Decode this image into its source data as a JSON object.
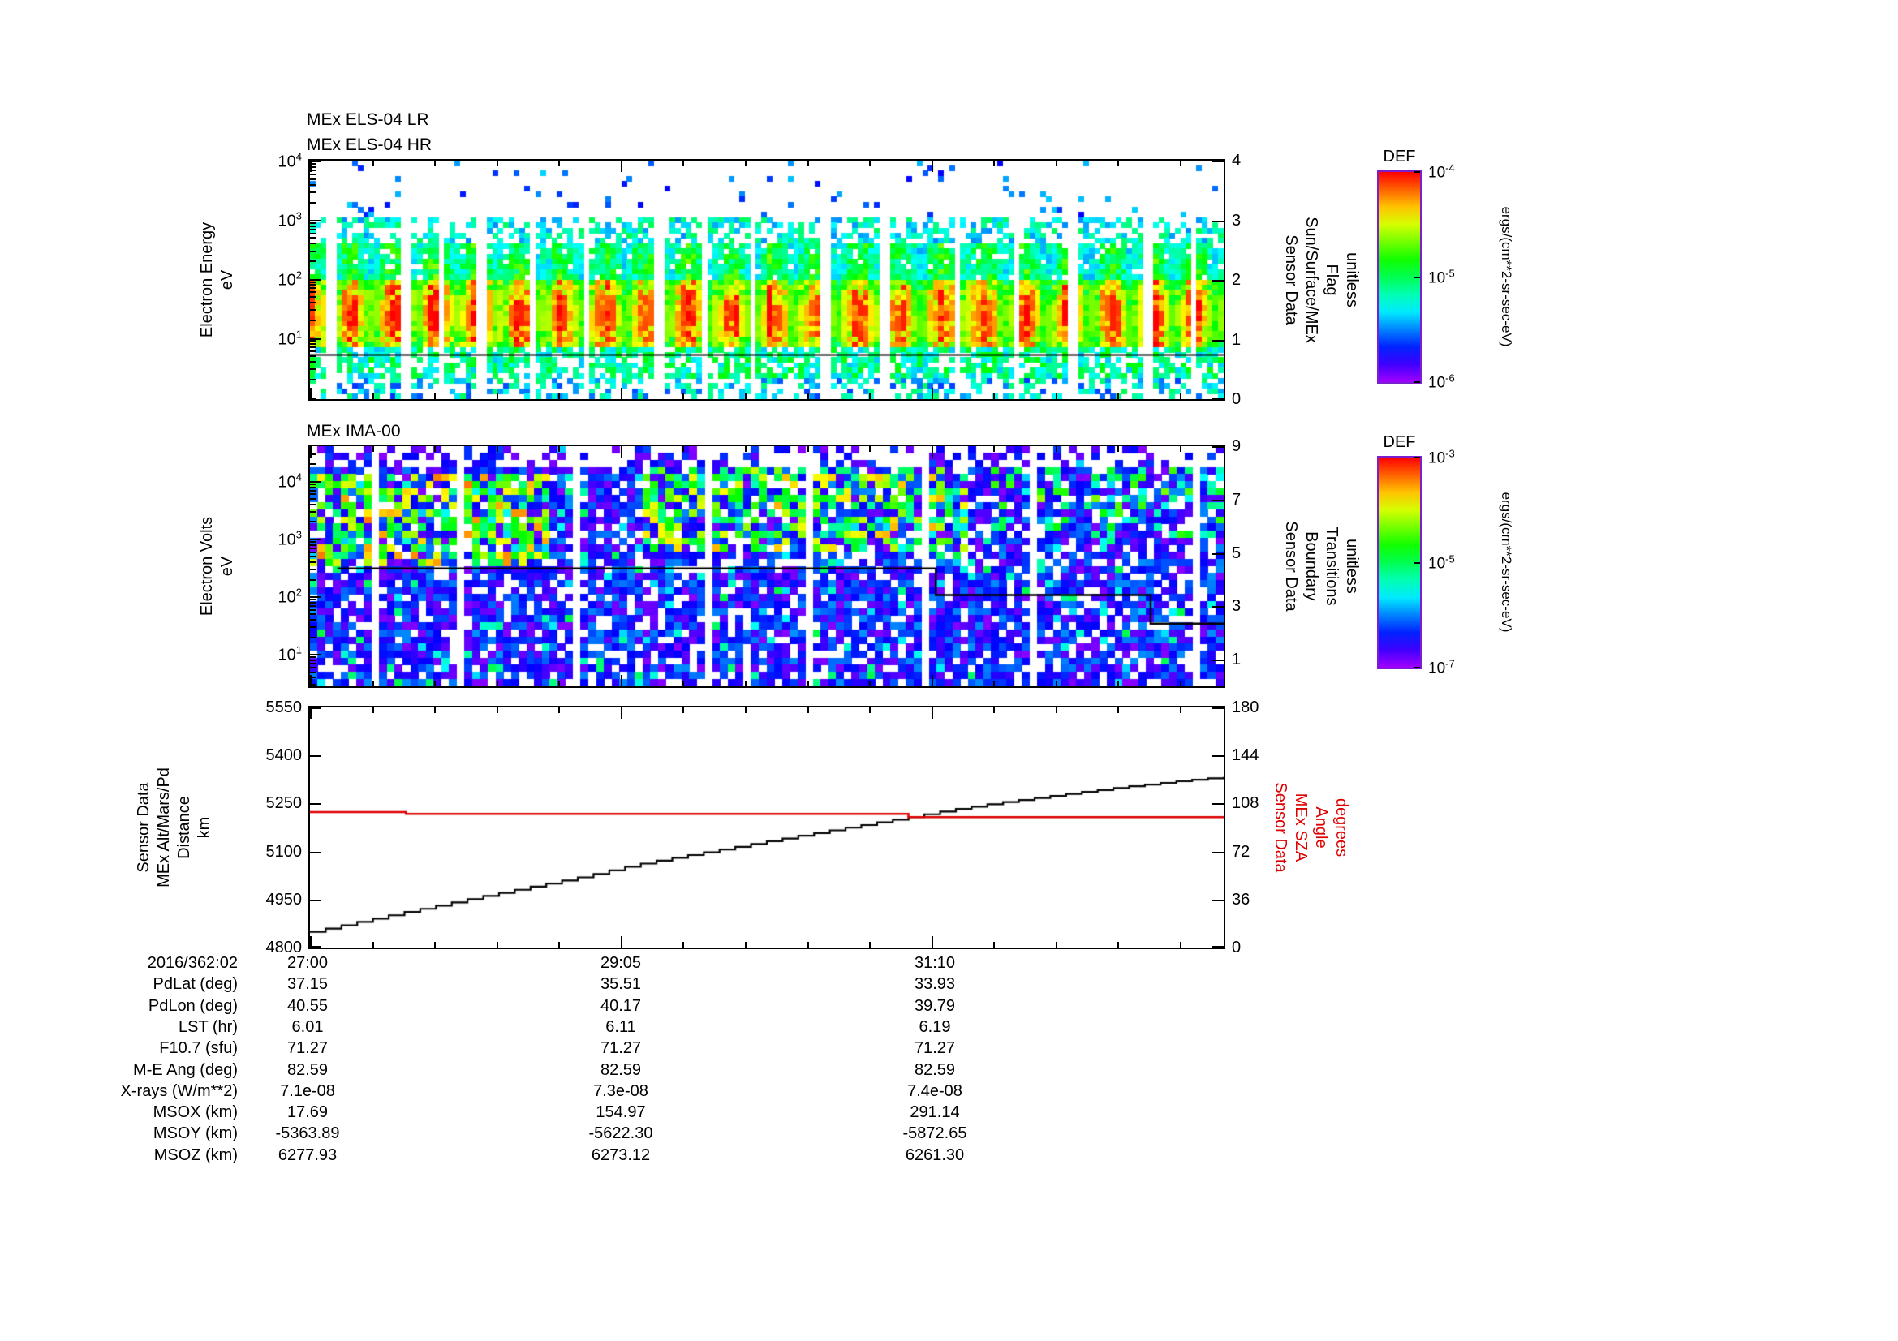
{
  "figure": {
    "background": "#ffffff",
    "accent_red": "#dd0000",
    "colorbar_border": "#7a1fd0"
  },
  "panels": {
    "els": {
      "title_lr": "MEx ELS-04 LR",
      "title_hr": "MEx ELS-04 HR",
      "left_label": [
        "Electron Energy",
        "eV"
      ],
      "right_label": [
        "Sensor Data",
        "Sun/Surface/MEx",
        "Flag",
        "unitless"
      ],
      "log_axis": {
        "top": 4.0,
        "bottom": -0.05
      },
      "left_ticks": [
        {
          "m": "10",
          "s": "4",
          "frac": 0.0
        },
        {
          "m": "10",
          "s": "3",
          "frac": 0.248
        },
        {
          "m": "10",
          "s": "2",
          "frac": 0.497
        },
        {
          "m": "10",
          "s": "1",
          "frac": 0.745
        }
      ],
      "right_ticks": [
        {
          "m": "4",
          "frac": 0.0
        },
        {
          "m": "3",
          "frac": 0.25
        },
        {
          "m": "2",
          "frac": 0.5
        },
        {
          "m": "1",
          "frac": 0.75
        },
        {
          "m": "0",
          "frac": 1.0
        }
      ]
    },
    "ima": {
      "title": "MEx IMA-00",
      "left_label": [
        "Electron Volts",
        "eV"
      ],
      "right_label": [
        "Sensor Data",
        "Boundary",
        "Transitions",
        "unitless"
      ],
      "log_axis": {
        "top": 4.6,
        "bottom": 0.44
      },
      "left_ticks": [
        {
          "m": "10",
          "s": "4",
          "frac": 0.144
        },
        {
          "m": "10",
          "s": "3",
          "frac": 0.385
        },
        {
          "m": "10",
          "s": "2",
          "frac": 0.625
        },
        {
          "m": "10",
          "s": "1",
          "frac": 0.865
        }
      ],
      "right_ticks": [
        {
          "m": "9",
          "frac": 0.0
        },
        {
          "m": "7",
          "frac": 0.2222
        },
        {
          "m": "5",
          "frac": 0.4444
        },
        {
          "m": "3",
          "frac": 0.6667
        },
        {
          "m": "1",
          "frac": 0.8889
        }
      ]
    },
    "aux": {
      "left_label": [
        "Sensor Data",
        "MEx Alt/Mars/Pd",
        "Distance",
        "km"
      ],
      "right_label": [
        "Sensor Data",
        "MEx SZA",
        "Angle",
        "degrees"
      ],
      "left_ticks": [
        {
          "m": "5550",
          "frac": 0.0
        },
        {
          "m": "5400",
          "frac": 0.2
        },
        {
          "m": "5250",
          "frac": 0.4
        },
        {
          "m": "5100",
          "frac": 0.6
        },
        {
          "m": "4950",
          "frac": 0.8
        },
        {
          "m": "4800",
          "frac": 1.0
        }
      ],
      "right_ticks": [
        {
          "m": "180",
          "frac": 0.0
        },
        {
          "m": "144",
          "frac": 0.2
        },
        {
          "m": "108",
          "frac": 0.4
        },
        {
          "m": "72",
          "frac": 0.6
        },
        {
          "m": "36",
          "frac": 0.8
        },
        {
          "m": "0",
          "frac": 1.0
        }
      ]
    },
    "x_axis": {
      "major_fracs": [
        0.0,
        0.34,
        0.68
      ],
      "minor_step": 0.068
    }
  },
  "colorbars": [
    {
      "title": "DEF",
      "unit": "ergs/(cm**2-sr-sec-eV)",
      "ticks": [
        {
          "m": "10",
          "s": "-4",
          "frac": 0.0
        },
        {
          "m": "10",
          "s": "-5",
          "frac": 0.5
        },
        {
          "m": "10",
          "s": "-6",
          "frac": 1.0
        }
      ]
    },
    {
      "title": "DEF",
      "unit": "ergs/(cm**2-sr-sec-eV)",
      "ticks": [
        {
          "m": "10",
          "s": "-3",
          "frac": 0.0
        },
        {
          "m": "10",
          "s": "-5",
          "frac": 0.5
        },
        {
          "m": "10",
          "s": "-7",
          "frac": 1.0
        }
      ]
    }
  ],
  "table": {
    "rows": [
      {
        "label": "2016/362:02",
        "values": [
          "27:00",
          "29:05",
          "31:10"
        ]
      },
      {
        "label": "PdLat (deg)",
        "values": [
          "37.15",
          "35.51",
          "33.93"
        ]
      },
      {
        "label": "PdLon (deg)",
        "values": [
          "40.55",
          "40.17",
          "39.79"
        ]
      },
      {
        "label": "LST (hr)",
        "values": [
          "6.01",
          "6.11",
          "6.19"
        ]
      },
      {
        "label": "F10.7 (sfu)",
        "values": [
          "71.27",
          "71.27",
          "71.27"
        ]
      },
      {
        "label": "M-E Ang (deg)",
        "values": [
          "82.59",
          "82.59",
          "82.59"
        ]
      },
      {
        "label": "X-rays (W/m**2)",
        "values": [
          "7.1e-08",
          "7.3e-08",
          "7.4e-08"
        ]
      },
      {
        "label": "MSOX (km)",
        "values": [
          "17.69",
          "154.97",
          "291.14"
        ]
      },
      {
        "label": "MSOY (km)",
        "values": [
          "-5363.89",
          "-5622.30",
          "-5872.65"
        ]
      },
      {
        "label": "MSOZ (km)",
        "values": [
          "6277.93",
          "6273.12",
          "6261.30"
        ]
      }
    ]
  },
  "chart_data": [
    {
      "type": "heatmap",
      "title": "MEx ELS-04 LR / MEx ELS-04 HR",
      "ylabel": "Electron Energy eV",
      "y_scale": "log",
      "ylim": [
        1,
        10000
      ],
      "x_tick_labels": [
        "27:00",
        "29:05",
        "31:10"
      ],
      "right_axis": {
        "label": "Sensor Data Sun/Surface/MEx Flag unitless",
        "ylim": [
          0,
          4
        ],
        "ticks": [
          0,
          1,
          2,
          3,
          4
        ]
      },
      "colorbar": {
        "title": "DEF",
        "unit": "ergs/(cm**2-sr-sec-eV)",
        "tick_values": [
          "1e-4",
          "1e-5",
          "1e-6"
        ]
      },
      "overlay": {
        "name": "flag",
        "type": "hline",
        "value": 0.74
      },
      "description": "Rainbow electron-energy spectrogram: intense red/orange flux 8-80 eV, yellow-green 100-500 eV, sparse blue above 1 keV, periodic white telemetry gaps; flat black flag trace near 0.74.",
      "render": {
        "seed": 1234,
        "grid": {
          "cols": 170,
          "rows": 46
        },
        "log_top": 4.0,
        "log_bottom": -0.05,
        "gaps": {
          "start": 8,
          "max_w": 2,
          "min_space": 5,
          "jitter": 8
        },
        "bands": [
          {
            "lo": 3.0,
            "hi": 4.06,
            "p": 0.045,
            "t": [
              0.12,
              0.32
            ]
          },
          {
            "lo": 2.55,
            "hi": 3.0,
            "p": 0.5,
            "t": [
              0.25,
              0.5
            ]
          },
          {
            "lo": 1.95,
            "hi": 2.55,
            "p": 0.92,
            "t": [
              0.42,
              0.68
            ],
            "mod": true
          },
          {
            "lo": 0.85,
            "hi": 1.95,
            "p": 1.0,
            "t": [
              0.6,
              0.95
            ],
            "mod": true,
            "peak": 1.35,
            "pw": 0.65
          },
          {
            "lo": 0.3,
            "hi": 0.85,
            "p": 0.72,
            "t": [
              0.3,
              0.58
            ]
          },
          {
            "lo": -0.06,
            "hi": 0.3,
            "p": 0.42,
            "t": [
              0.18,
              0.5
            ]
          }
        ]
      }
    },
    {
      "type": "heatmap",
      "title": "MEx IMA-00",
      "ylabel": "Electron Volts eV",
      "y_scale": "log",
      "ylim": [
        3,
        40000
      ],
      "right_axis": {
        "label": "Sensor Data Boundary Transitions unitless",
        "ylim": [
          0,
          9
        ],
        "ticks": [
          1,
          3,
          5,
          7,
          9
        ]
      },
      "colorbar": {
        "title": "DEF",
        "unit": "ergs/(cm**2-sr-sec-eV)",
        "tick_values": [
          "1e-3",
          "1e-5",
          "1e-7"
        ]
      },
      "overlay": {
        "name": "boundary_transitions",
        "type": "steps",
        "points": [
          {
            "x": 0.03,
            "v": 4.42
          },
          {
            "x": 0.685,
            "v": 3.42
          },
          {
            "x": 0.92,
            "v": 2.35
          }
        ],
        "end_x": 1.0
      },
      "description": "Mostly blue/violet ion spectrogram with green-yellow patches in upper-left and upper-middle regions, scattered white dropouts; black stepped boundary-transition trace descending from ~4.4 to ~2.4.",
      "render": {
        "seed": 987,
        "grid": {
          "cols": 118,
          "rows": 34
        },
        "log_top": 4.6,
        "log_bottom": 0.44,
        "gaps": {
          "start": 6,
          "max_w": 1,
          "min_space": 9,
          "jitter": 13
        },
        "bands": [
          {
            "lo": 4.25,
            "hi": 4.62,
            "p": 0.4,
            "t": [
              0.02,
              0.2
            ],
            "spark": 0.03
          },
          {
            "lo": 0.4,
            "hi": 4.25,
            "p": 0.8,
            "t": [
              0.02,
              0.26
            ],
            "spark": 0.07
          }
        ],
        "patches": [
          {
            "x": [
              0.0,
              0.26
            ],
            "lo": 2.55,
            "hi": 4.05,
            "p": 0.55,
            "t": [
              0.45,
              0.9
            ]
          },
          {
            "x": [
              0.36,
              0.72
            ],
            "lo": 2.8,
            "hi": 4.2,
            "p": 0.45,
            "t": [
              0.4,
              0.85
            ]
          },
          {
            "x": [
              0.74,
              1.0
            ],
            "lo": 3.0,
            "hi": 4.25,
            "p": 0.22,
            "t": [
              0.35,
              0.7
            ]
          }
        ]
      }
    },
    {
      "type": "line",
      "left_axis": {
        "label": "Sensor Data MEx Alt/Mars/Pd Distance km",
        "ylim": [
          4800,
          5550
        ],
        "ticks": [
          4800,
          4950,
          5100,
          5250,
          5400,
          5550
        ]
      },
      "right_axis": {
        "label": "Sensor Data MEx SZA Angle degrees",
        "ylim": [
          0,
          180
        ],
        "ticks": [
          0,
          36,
          72,
          108,
          144,
          180
        ]
      },
      "x_tick_labels": [
        "27:00",
        "29:05",
        "31:10"
      ],
      "series": [
        {
          "name": "MEx Alt/Mars/Pd Distance (km)",
          "axis": "left",
          "color": "#000000",
          "style": "staircase",
          "x_frac": [
            0,
            0.05,
            0.1,
            0.15,
            0.2,
            0.25,
            0.3,
            0.35,
            0.4,
            0.45,
            0.5,
            0.55,
            0.6,
            0.65,
            0.7,
            0.75,
            0.8,
            0.85,
            0.9,
            0.95,
            1.0
          ],
          "values": [
            4849,
            4879,
            4909,
            4938,
            4967,
            4995,
            5023,
            5056,
            5082,
            5107,
            5132,
            5157,
            5181,
            5205,
            5230,
            5251,
            5270,
            5288,
            5305,
            5320,
            5333
          ]
        },
        {
          "name": "MEx SZA Angle (deg)",
          "axis": "right",
          "color": "#dd0000",
          "style": "steps",
          "points": [
            {
              "x": 0.0,
              "v": 101.5
            },
            {
              "x": 0.105,
              "v": 100.2
            },
            {
              "x": 0.655,
              "v": 97.8
            }
          ],
          "end_x": 1.0
        }
      ]
    }
  ]
}
